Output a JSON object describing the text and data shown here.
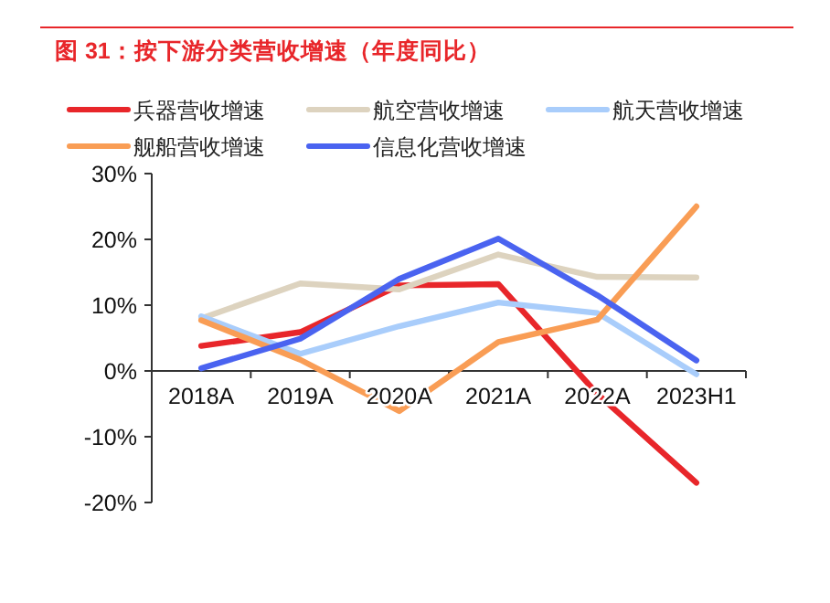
{
  "chart_data": {
    "type": "line",
    "title": "图 31：按下游分类营收增速（年度同比）",
    "categories": [
      "2018A",
      "2019A",
      "2020A",
      "2021A",
      "2022A",
      "2023H1"
    ],
    "series": [
      {
        "name": "兵器营收增速",
        "color": "#e8262a",
        "values": [
          3.8,
          5.9,
          13,
          13.2,
          -3.5,
          -17
        ]
      },
      {
        "name": "航空营收增速",
        "color": "#ddd3bf",
        "values": [
          8,
          13.3,
          12.4,
          17.7,
          14.3,
          14.2
        ]
      },
      {
        "name": "航天营收增速",
        "color": "#a9cdfb",
        "values": [
          8.3,
          2.6,
          6.8,
          10.4,
          8.8,
          -0.5
        ]
      },
      {
        "name": "舰船营收增速",
        "color": "#f99d55",
        "values": [
          7.7,
          1.7,
          -6.1,
          4.4,
          7.8,
          25
        ]
      },
      {
        "name": "信息化营收增速",
        "color": "#4a63f0",
        "values": [
          0.4,
          4.9,
          14,
          20.1,
          11.5,
          1.6
        ]
      }
    ],
    "ylim": [
      -20,
      30
    ],
    "yticks": [
      {
        "value": -20,
        "label": "-20%"
      },
      {
        "value": -10,
        "label": "-10%"
      },
      {
        "value": 0,
        "label": "0%"
      },
      {
        "value": 10,
        "label": "10%"
      },
      {
        "value": 20,
        "label": "20%"
      },
      {
        "value": 30,
        "label": "30%"
      }
    ],
    "grid": false,
    "legend": "top",
    "marker": "none",
    "line_style": "solid"
  }
}
